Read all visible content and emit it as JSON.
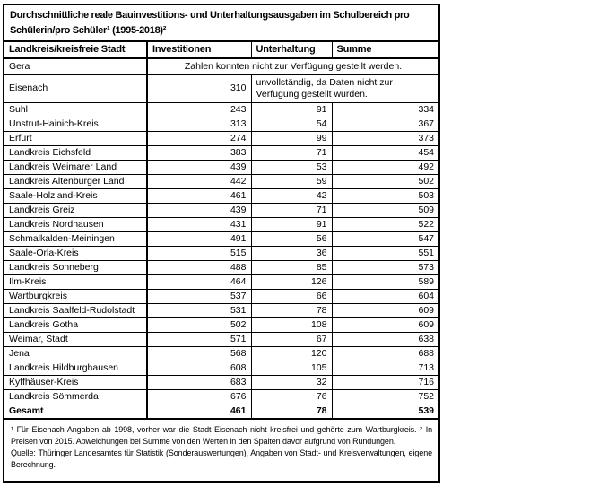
{
  "title": {
    "line1": "Durchschnittliche reale Bauinvestitions- und Unterhaltungsausgaben im Schulbereich pro",
    "line2": "Schülerin/pro Schüler¹ (1995-2018)²"
  },
  "columns": [
    "Landkreis/kreisfreie Stadt",
    "Investitionen",
    "Unterhaltung",
    "Summe"
  ],
  "special_rows": [
    {
      "name": "Gera",
      "note": "Zahlen konnten nicht zur Verfügung gestellt werden."
    },
    {
      "name": "Eisenach",
      "investitionen": "310",
      "note": "unvollständig, da Daten nicht zur Verfügung gestellt wurden."
    }
  ],
  "rows": [
    {
      "name": "Suhl",
      "investitionen": "243",
      "unterhaltung": "91",
      "summe": "334"
    },
    {
      "name": "Unstrut-Hainich-Kreis",
      "investitionen": "313",
      "unterhaltung": "54",
      "summe": "367"
    },
    {
      "name": "Erfurt",
      "investitionen": "274",
      "unterhaltung": "99",
      "summe": "373"
    },
    {
      "name": "Landkreis Eichsfeld",
      "investitionen": "383",
      "unterhaltung": "71",
      "summe": "454"
    },
    {
      "name": "Landkreis Weimarer Land",
      "investitionen": "439",
      "unterhaltung": "53",
      "summe": "492"
    },
    {
      "name": "Landkreis Altenburger Land",
      "investitionen": "442",
      "unterhaltung": "59",
      "summe": "502"
    },
    {
      "name": "Saale-Holzland-Kreis",
      "investitionen": "461",
      "unterhaltung": "42",
      "summe": "503"
    },
    {
      "name": "Landkreis Greiz",
      "investitionen": "439",
      "unterhaltung": "71",
      "summe": "509"
    },
    {
      "name": "Landkreis Nordhausen",
      "investitionen": "431",
      "unterhaltung": "91",
      "summe": "522"
    },
    {
      "name": "Schmalkalden-Meiningen",
      "investitionen": "491",
      "unterhaltung": "56",
      "summe": "547"
    },
    {
      "name": "Saale-Orla-Kreis",
      "investitionen": "515",
      "unterhaltung": "36",
      "summe": "551"
    },
    {
      "name": "Landkreis Sonneberg",
      "investitionen": "488",
      "unterhaltung": "85",
      "summe": "573"
    },
    {
      "name": "Ilm-Kreis",
      "investitionen": "464",
      "unterhaltung": "126",
      "summe": "589"
    },
    {
      "name": "Wartburgkreis",
      "investitionen": "537",
      "unterhaltung": "66",
      "summe": "604"
    },
    {
      "name": "Landkreis Saalfeld-Rudolstadt",
      "investitionen": "531",
      "unterhaltung": "78",
      "summe": "609"
    },
    {
      "name": "Landkreis Gotha",
      "investitionen": "502",
      "unterhaltung": "108",
      "summe": "609"
    },
    {
      "name": "Weimar, Stadt",
      "investitionen": "571",
      "unterhaltung": "67",
      "summe": "638"
    },
    {
      "name": "Jena",
      "investitionen": "568",
      "unterhaltung": "120",
      "summe": "688"
    },
    {
      "name": "Landkreis Hildburghausen",
      "investitionen": "608",
      "unterhaltung": "105",
      "summe": "713"
    },
    {
      "name": "Kyffhäuser-Kreis",
      "investitionen": "683",
      "unterhaltung": "32",
      "summe": "716"
    },
    {
      "name": "Landkreis Sömmerda",
      "investitionen": "676",
      "unterhaltung": "76",
      "summe": "752"
    }
  ],
  "total_row": {
    "name": "Gesamt",
    "investitionen": "461",
    "unterhaltung": "78",
    "summe": "539"
  },
  "footnotes": {
    "notes": "¹ Für Eisenach Angaben ab 1998, vorher war die Stadt Eisenach nicht kreisfrei und gehörte zum Wartburgkreis. ² In Preisen von 2015. Abweichungen bei Summe von den Werten in den Spalten davor aufgrund von Rundungen.",
    "source": "Quelle: Thüringer Landesamtes für Statistik (Sonderauswertungen), Angaben von Stadt- und Kreisverwaltungen, eigene Berechnung."
  },
  "colors": {
    "accent_red": "#C00000",
    "border_black": "#000000",
    "background": "#FFFFFF"
  }
}
